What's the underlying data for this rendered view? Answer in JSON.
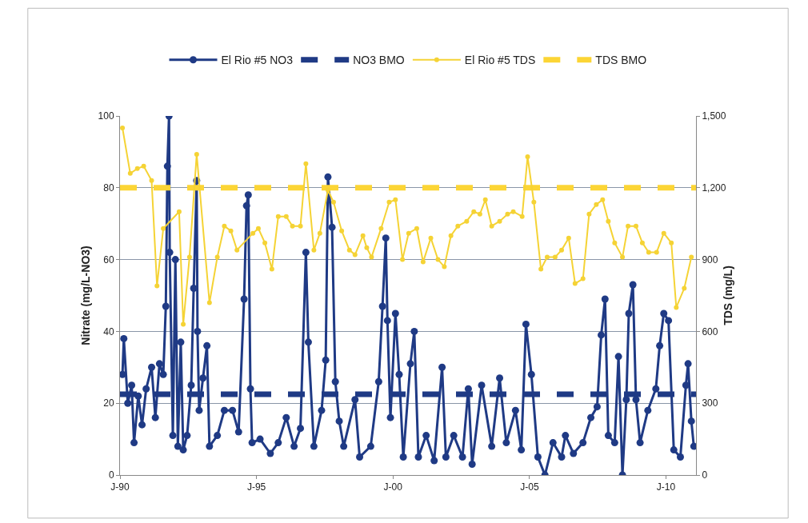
{
  "chart_data": {
    "type": "line",
    "ylabel": "Nitrate (mg/L-NO3)",
    "y2label": "TDS (mg/L)",
    "xlim": [
      "1990-01-01",
      "2011-02-06"
    ],
    "xticks": [
      {
        "value": "1990-01-01",
        "label": "J-90"
      },
      {
        "value": "1995-01-01",
        "label": "J-95"
      },
      {
        "value": "2000-01-01",
        "label": "J-00"
      },
      {
        "value": "2005-01-01",
        "label": "J-05"
      },
      {
        "value": "2010-01-01",
        "label": "J-10"
      }
    ],
    "ylim": [
      0,
      100
    ],
    "yticks": [
      0,
      20,
      40,
      60,
      80,
      100
    ],
    "y2lim": [
      0,
      1500
    ],
    "y2ticks": [
      0,
      300,
      600,
      900,
      {
        "value": 1200,
        "label": "1,200"
      },
      {
        "value": 1500,
        "label": "1,500"
      }
    ],
    "grid": "y",
    "legend": "top",
    "series": [
      {
        "name": "El Rio #5 NO3",
        "color": "#1f3a85",
        "marker": "circle",
        "line_style": "solid",
        "x": [
          "1990-02-03",
          "1990-02-21",
          "1990-04-15",
          "1990-06-06",
          "1990-07-08",
          "1990-09-02",
          "1990-10-23",
          "1990-12-17",
          "1991-02-28",
          "1991-04-19",
          "1991-06-13",
          "1991-08-03",
          "1991-09-06",
          "1991-09-27",
          "1991-10-19",
          "1991-10-28",
          "1991-12-09",
          "1992-01-12",
          "1992-02-14",
          "1992-03-24",
          "1992-04-26",
          "1992-06-17",
          "1992-08-11",
          "1992-09-13",
          "1992-10-23",
          "1992-11-03",
          "1992-11-25",
          "1993-01-15",
          "1993-03-09",
          "1993-04-12",
          "1993-07-26",
          "1993-10-28",
          "1994-02-14",
          "1994-05-07",
          "1994-07-19",
          "1994-08-21",
          "1994-09-13",
          "1994-10-12",
          "1994-11-03",
          "1995-02-18",
          "1995-07-05",
          "1995-10-19",
          "1996-02-03",
          "1996-05-18",
          "1996-08-11",
          "1996-10-23",
          "1996-11-25",
          "1997-02-07",
          "1997-05-21",
          "1997-07-15",
          "1997-08-14",
          "1997-10-08",
          "1997-11-21",
          "1998-01-12",
          "1998-03-13",
          "1998-08-11",
          "1998-10-12",
          "1999-03-09",
          "1999-06-24",
          "1999-08-14",
          "1999-09-27",
          "1999-10-19",
          "1999-11-28",
          "2000-02-03",
          "2000-03-24",
          "2000-05-18",
          "2000-08-21",
          "2000-10-12",
          "2000-12-06",
          "2001-03-20",
          "2001-07-05",
          "2001-10-19",
          "2001-12-09",
          "2002-03-24",
          "2002-07-19",
          "2002-10-05",
          "2002-11-25",
          "2003-04-01",
          "2003-08-14",
          "2003-11-28",
          "2004-02-25",
          "2004-06-27",
          "2004-09-13",
          "2004-11-14",
          "2005-01-26",
          "2005-04-23",
          "2005-07-26",
          "2005-11-11",
          "2006-03-06",
          "2006-04-26",
          "2006-08-11",
          "2006-12-17",
          "2007-04-01",
          "2007-06-24",
          "2007-08-18",
          "2007-10-08",
          "2007-11-21",
          "2008-02-14",
          "2008-04-05",
          "2008-05-28",
          "2008-07-19",
          "2008-08-21",
          "2008-10-15",
          "2008-11-25",
          "2009-01-19",
          "2009-05-03",
          "2009-08-18",
          "2009-10-08",
          "2009-12-02",
          "2010-02-03",
          "2010-04-15",
          "2010-07-12",
          "2010-09-24",
          "2010-10-23",
          "2010-12-06",
          "2011-01-08"
        ],
        "values": [
          28,
          38,
          20,
          25,
          9,
          22,
          14,
          24,
          30,
          16,
          31,
          28,
          47,
          86,
          100,
          62,
          11,
          60,
          8,
          37,
          7,
          11,
          25,
          52,
          82,
          40,
          18,
          27,
          36,
          8,
          11,
          18,
          18,
          12,
          49,
          75,
          78,
          24,
          9,
          10,
          6,
          9,
          16,
          8,
          13,
          62,
          37,
          8,
          18,
          32,
          83,
          69,
          26,
          15,
          8,
          21,
          5,
          8,
          26,
          47,
          66,
          43,
          16,
          45,
          28,
          5,
          31,
          40,
          5,
          11,
          4,
          30,
          5,
          11,
          5,
          24,
          3,
          25,
          8,
          27,
          9,
          18,
          7,
          42,
          28,
          5,
          0,
          9,
          5,
          11,
          6,
          9,
          16,
          19,
          39,
          49,
          11,
          9,
          33,
          0,
          21,
          45,
          53,
          21,
          9,
          18,
          24,
          36,
          45,
          43,
          7,
          5,
          25,
          31,
          15,
          8
        ]
      },
      {
        "name": "NO3 BMO",
        "color": "#1f3a85",
        "marker": "none",
        "line_style": "dashed",
        "x": [
          "1990-01-01",
          "2011-02-06"
        ],
        "values": [
          22.5,
          22.5
        ]
      },
      {
        "name": "El Rio #5 TDS",
        "color": "#f5d335",
        "marker": "circle",
        "line_style": "solid",
        "axis": "y2",
        "x": [
          "1990-02-03",
          "1990-05-18",
          "1990-08-21",
          "1990-11-14",
          "1991-02-28",
          "1991-05-11",
          "1991-08-03",
          "1992-03-02",
          "1992-04-26",
          "1992-07-19",
          "1992-10-23",
          "1993-04-12",
          "1993-07-26",
          "1993-10-28",
          "1994-01-23",
          "1994-04-15",
          "1994-11-14",
          "1995-01-26",
          "1995-04-23",
          "1995-07-26",
          "1995-10-19",
          "1996-02-03",
          "1996-04-26",
          "1996-08-11",
          "1996-10-23",
          "1997-02-07",
          "1997-04-28",
          "1997-08-14",
          "1997-10-28",
          "1998-02-14",
          "1998-05-28",
          "1998-08-11",
          "1998-11-25",
          "1999-01-15",
          "1999-03-20",
          "1999-07-26",
          "1999-11-11",
          "2000-02-03",
          "2000-05-07",
          "2000-07-28",
          "2000-11-14",
          "2001-02-07",
          "2001-05-21",
          "2001-08-25",
          "2001-11-18",
          "2002-02-14",
          "2002-05-18",
          "2002-09-13",
          "2002-12-17",
          "2003-03-09",
          "2003-05-21",
          "2003-08-14",
          "2003-11-28",
          "2004-03-13",
          "2004-05-28",
          "2004-09-24",
          "2004-12-06",
          "2005-02-28",
          "2005-06-02",
          "2005-08-25",
          "2005-12-09",
          "2006-03-06",
          "2006-06-09",
          "2006-09-02",
          "2006-12-17",
          "2007-03-09",
          "2007-06-13",
          "2007-09-06",
          "2007-11-21",
          "2008-02-14",
          "2008-05-28",
          "2008-08-11",
          "2008-11-25",
          "2009-02-18",
          "2009-05-14",
          "2009-08-28",
          "2009-12-02",
          "2010-03-13",
          "2010-05-18",
          "2010-09-02",
          "2010-12-06"
        ],
        "values": [
          1450,
          1260,
          1280,
          1290,
          1230,
          790,
          1030,
          1100,
          630,
          910,
          1340,
          720,
          910,
          1040,
          1020,
          940,
          1010,
          1030,
          970,
          860,
          1080,
          1080,
          1040,
          1040,
          1300,
          940,
          1010,
          1190,
          1140,
          1020,
          940,
          920,
          1000,
          950,
          910,
          1030,
          1140,
          1150,
          900,
          1010,
          1030,
          890,
          990,
          900,
          870,
          1000,
          1040,
          1060,
          1100,
          1090,
          1150,
          1040,
          1060,
          1090,
          1100,
          1080,
          1330,
          1140,
          860,
          910,
          910,
          940,
          990,
          800,
          820,
          1090,
          1130,
          1150,
          1060,
          970,
          910,
          1040,
          1040,
          970,
          930,
          930,
          1010,
          970,
          700,
          780,
          910
        ]
      },
      {
        "name": "TDS BMO",
        "color": "#fcd535",
        "marker": "none",
        "line_style": "dashed",
        "axis": "y2",
        "x": [
          "1990-01-01",
          "2011-02-06"
        ],
        "values": [
          1200,
          1200
        ]
      }
    ]
  }
}
